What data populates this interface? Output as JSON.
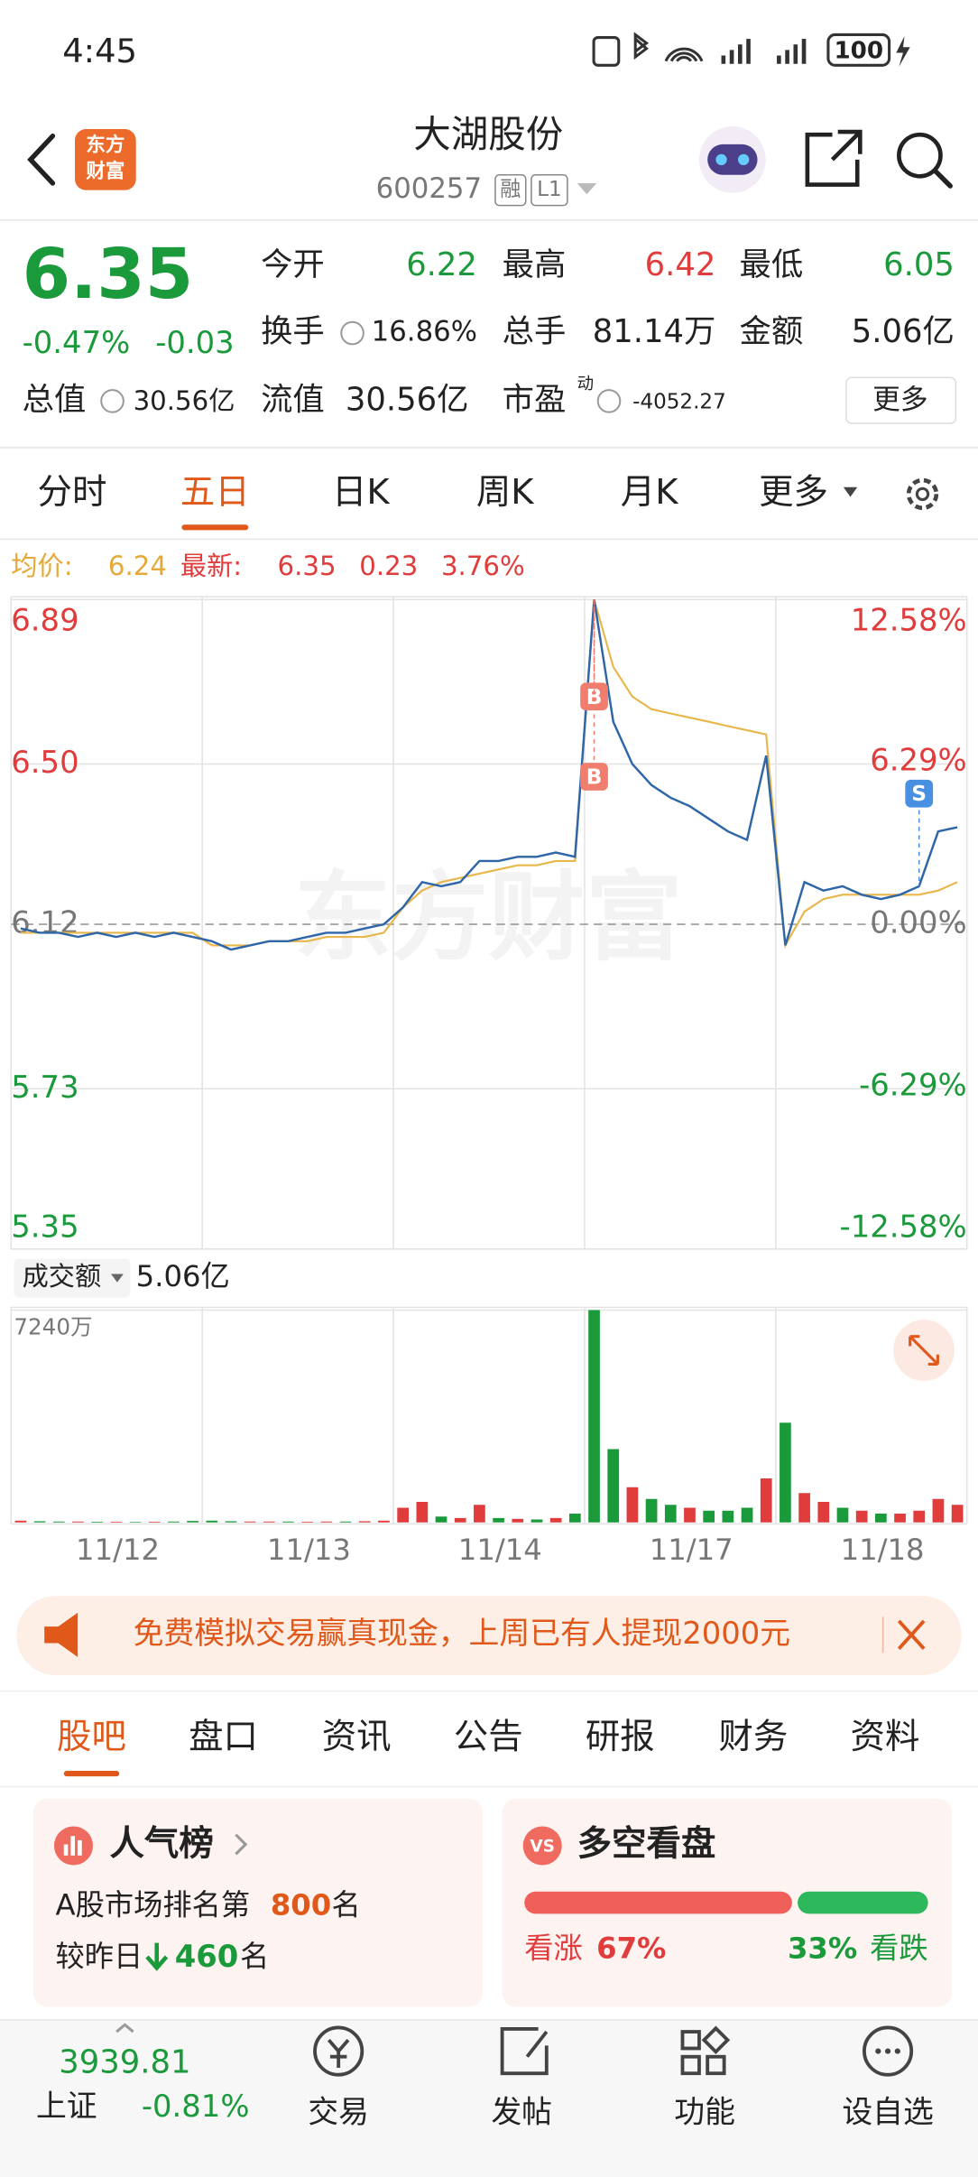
{
  "status": {
    "time": "4:45",
    "battery": "100"
  },
  "header": {
    "logo": [
      "东方",
      "财富"
    ],
    "title": "大湖股份",
    "code": "600257",
    "tags": [
      "融",
      "L1"
    ]
  },
  "quote": {
    "price": "6.35",
    "change_pct": "-0.47%",
    "change": "-0.03",
    "fields": [
      {
        "label": "今开",
        "value": "6.22"
      },
      {
        "label": "最高",
        "value": "6.42"
      },
      {
        "label": "最低",
        "value": "6.05"
      },
      {
        "label": "换手",
        "value": "16.86%"
      },
      {
        "label": "总手",
        "value": "81.14万"
      },
      {
        "label": "金额",
        "value": "5.06亿"
      },
      {
        "label": "总值",
        "value": "30.56亿"
      },
      {
        "label": "流值",
        "value": "30.56亿"
      },
      {
        "label": "市盈",
        "sup": "动",
        "value": "-4052.27"
      }
    ],
    "more": "更多"
  },
  "tabs": {
    "items": [
      "分时",
      "五日",
      "日K",
      "周K",
      "月K",
      "更多"
    ],
    "active": 1
  },
  "chart_info": {
    "avg_label": "均价:",
    "avg": "6.24",
    "last_label": "最新:",
    "last": "6.35",
    "change": "0.23",
    "change_pct": "3.76%"
  },
  "price_chart": {
    "type": "line",
    "watermark": "东方财富",
    "x_labels": [
      "11/12",
      "11/13",
      "11/14",
      "11/17",
      "11/18"
    ],
    "ylim": [
      5.35,
      6.89
    ],
    "yticks": [
      6.89,
      {
        "value": 6.5,
        "label": "6.50"
      },
      6.12,
      5.73,
      5.35
    ],
    "y2lim": [
      -12.58,
      12.58
    ],
    "y2ticks": [
      {
        "value": 12.58,
        "label": "12.58%"
      },
      {
        "value": 6.29,
        "label": "6.29%"
      },
      {
        "value": 0,
        "label": "0.00%"
      },
      {
        "value": -6.29,
        "label": "-6.29%"
      },
      {
        "value": -12.58,
        "label": "-12.58%"
      }
    ],
    "series": [
      {
        "name": "价格",
        "color": "#2f66a8",
        "values": [
          6.11,
          6.1,
          6.1,
          6.09,
          6.1,
          6.09,
          6.1,
          6.09,
          6.1,
          6.09,
          6.08,
          6.06,
          6.07,
          6.08,
          6.08,
          6.09,
          6.1,
          6.1,
          6.11,
          6.12,
          6.16,
          6.22,
          6.21,
          6.22,
          6.27,
          6.27,
          6.28,
          6.28,
          6.29,
          6.28,
          6.89,
          6.6,
          6.5,
          6.45,
          6.42,
          6.4,
          6.37,
          6.34,
          6.32,
          6.52,
          6.07,
          6.22,
          6.2,
          6.21,
          6.19,
          6.18,
          6.19,
          6.21,
          6.34,
          6.35
        ]
      },
      {
        "name": "均价",
        "color": "#e8b64a",
        "values": [
          6.1,
          6.1,
          6.1,
          6.1,
          6.1,
          6.1,
          6.1,
          6.1,
          6.1,
          6.1,
          6.07,
          6.07,
          6.07,
          6.08,
          6.08,
          6.08,
          6.09,
          6.09,
          6.09,
          6.1,
          6.16,
          6.2,
          6.22,
          6.23,
          6.24,
          6.25,
          6.26,
          6.26,
          6.27,
          6.27,
          6.89,
          6.73,
          6.66,
          6.63,
          6.62,
          6.61,
          6.6,
          6.59,
          6.58,
          6.57,
          6.07,
          6.15,
          6.18,
          6.19,
          6.19,
          6.19,
          6.19,
          6.19,
          6.2,
          6.22
        ]
      }
    ],
    "markers": [
      {
        "label": "B",
        "index": 30,
        "value": 6.66
      },
      {
        "label": "B",
        "index": 30,
        "value": 6.47
      },
      {
        "label": "S",
        "index": 47,
        "value": 6.43
      }
    ]
  },
  "volume_chart": {
    "type": "bar",
    "label": "成交额",
    "total": "5.06亿",
    "ylim": [
      0,
      7240
    ],
    "yticks": [
      {
        "value": 7240,
        "label": "7240万"
      }
    ],
    "values": [
      60,
      40,
      30,
      30,
      25,
      25,
      20,
      25,
      30,
      50,
      60,
      40,
      30,
      30,
      30,
      25,
      30,
      30,
      40,
      60,
      500,
      700,
      200,
      150,
      600,
      150,
      120,
      100,
      150,
      300,
      7240,
      2500,
      1200,
      800,
      600,
      500,
      400,
      400,
      500,
      1500,
      3400,
      1000,
      700,
      500,
      400,
      300,
      300,
      400,
      800,
      600
    ],
    "colors": [
      "#e03c3c",
      "#1a9a3a",
      "#1a9a3a",
      "#e03c3c",
      "#1a9a3a",
      "#e03c3c",
      "#1a9a3a",
      "#e03c3c",
      "#1a9a3a",
      "#1a9a3a",
      "#1a9a3a",
      "#1a9a3a",
      "#e03c3c",
      "#e03c3c",
      "#1a9a3a",
      "#e03c3c",
      "#e03c3c",
      "#1a9a3a",
      "#e03c3c",
      "#e03c3c",
      "#e03c3c",
      "#e03c3c",
      "#1a9a3a",
      "#e03c3c",
      "#e03c3c",
      "#1a9a3a",
      "#e03c3c",
      "#1a9a3a",
      "#e03c3c",
      "#1a9a3a",
      "#1a9a3a",
      "#1a9a3a",
      "#e03c3c",
      "#1a9a3a",
      "#1a9a3a",
      "#e03c3c",
      "#1a9a3a",
      "#1a9a3a",
      "#1a9a3a",
      "#e03c3c",
      "#1a9a3a",
      "#e03c3c",
      "#e03c3c",
      "#1a9a3a",
      "#e03c3c",
      "#1a9a3a",
      "#e03c3c",
      "#e03c3c",
      "#e03c3c",
      "#e03c3c"
    ]
  },
  "banner": {
    "text": "免费模拟交易赢真现金，上周已有人提现2000元"
  },
  "sub_tabs": {
    "items": [
      "股吧",
      "盘口",
      "资讯",
      "公告",
      "研报",
      "财务",
      "资料"
    ],
    "active": 0
  },
  "cards": {
    "popularity": {
      "title": "人气榜",
      "rank_prefix": "A股市场排名第",
      "rank": "800",
      "rank_suffix": "名",
      "change_prefix": "较昨日",
      "change": "460",
      "change_suffix": "名"
    },
    "sentiment": {
      "title": "多空看盘",
      "labels": [
        "看涨",
        "看跌"
      ],
      "values": [
        67,
        33
      ],
      "value_labels": [
        "67%",
        "33%"
      ],
      "colors": [
        "#f0605a",
        "#2eb85c"
      ]
    }
  },
  "bottom_nav": {
    "index": {
      "value": "3939.81",
      "name": "上证",
      "change": "-0.81%"
    },
    "items": [
      "交易",
      "发帖",
      "功能",
      "设自选"
    ]
  }
}
